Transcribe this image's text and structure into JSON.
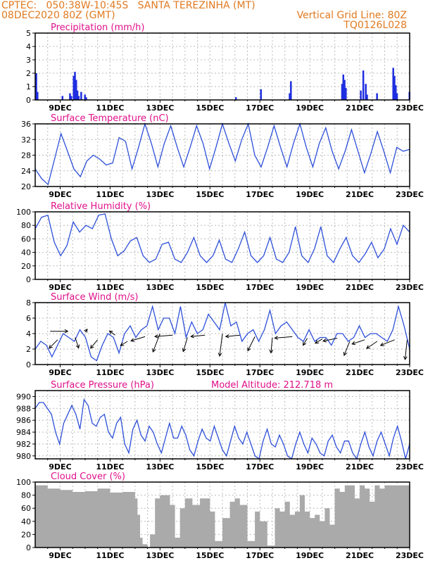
{
  "header": {
    "line1_left": "CPTEC:   050:38W-10:45S   SANTA TEREZINHA (MT)",
    "line2_left": "08DEC2020 80Z (GMT)",
    "line2_right": "Vertical Grid Line: 80Z",
    "line3_right": "TQ0126L028"
  },
  "colors": {
    "line": "#2d4fd9",
    "bar": "#1e2ee0",
    "cloud": "#aaaaaa",
    "title": "#e0108a",
    "header": "#e07a20",
    "grid": "#bbbbbb"
  },
  "x_ticks": [
    "9DEC",
    "11DEC",
    "13DEC",
    "15DEC",
    "17DEC",
    "19DEC",
    "21DEC",
    "23DEC"
  ],
  "chart_data": [
    {
      "type": "bar",
      "title": "Precipitation (mm/h)",
      "ylim": [
        0,
        5
      ],
      "yticks": [
        0,
        1,
        2,
        3,
        4,
        5
      ],
      "x": [
        8.05,
        8.1,
        9.1,
        9.4,
        9.45,
        9.55,
        9.6,
        9.65,
        9.7,
        9.75,
        9.85,
        10.0,
        10.05,
        16.05,
        17.05,
        18.2,
        18.25,
        20.3,
        20.35,
        20.4,
        20.45,
        21.05,
        21.15,
        21.25,
        21.3,
        21.7,
        22.35,
        22.4,
        22.45,
        22.5,
        23.0
      ],
      "values": [
        2.0,
        0.6,
        0.3,
        0.5,
        0.3,
        1.8,
        2.1,
        1.5,
        0.7,
        0.3,
        0.6,
        0.4,
        0.2,
        0.2,
        0.8,
        0.5,
        1.4,
        1.2,
        1.9,
        1.5,
        0.9,
        0.7,
        2.2,
        1.2,
        0.4,
        0.5,
        2.4,
        1.8,
        1.1,
        0.5,
        0.6
      ]
    },
    {
      "type": "line",
      "title": "Surface Temperature (nC)",
      "ylim": [
        20,
        36
      ],
      "yticks": [
        20,
        24,
        28,
        32,
        36
      ],
      "series": [
        {
          "values": [
            24.5,
            22,
            20.5,
            27,
            33.5,
            29,
            24.5,
            22.5,
            26.5,
            28,
            27,
            25.5,
            26,
            32.5,
            31.5,
            24.5,
            30,
            36,
            31,
            25,
            31,
            35.5,
            30,
            25,
            30,
            35.5,
            31,
            24.5,
            30,
            36,
            31,
            26.5,
            32,
            36,
            28,
            25,
            30,
            35.5,
            30,
            25,
            31,
            36,
            30,
            25,
            31,
            35,
            29,
            24.5,
            29,
            34.5,
            29,
            23.5,
            28.5,
            34,
            29,
            23.5,
            30,
            29,
            29.5
          ]
        }
      ]
    },
    {
      "type": "line",
      "title": "Relative Humidity (%)",
      "ylim": [
        0,
        100
      ],
      "yticks": [
        0,
        20,
        40,
        60,
        80,
        100
      ],
      "series": [
        {
          "values": [
            75,
            92,
            95,
            55,
            35,
            50,
            85,
            70,
            80,
            75,
            95,
            97,
            60,
            35,
            42,
            57,
            62,
            35,
            25,
            30,
            52,
            55,
            30,
            25,
            40,
            62,
            35,
            25,
            35,
            58,
            30,
            25,
            45,
            70,
            35,
            25,
            35,
            62,
            30,
            25,
            40,
            78,
            35,
            25,
            45,
            78,
            35,
            25,
            45,
            62,
            35,
            25,
            38,
            55,
            32,
            45,
            75,
            52,
            80,
            70
          ]
        }
      ]
    },
    {
      "type": "line",
      "title": "Surface Wind (m/s)",
      "ylim": [
        0,
        8
      ],
      "yticks": [
        0,
        2,
        4,
        6,
        8
      ],
      "series": [
        {
          "values": [
            2,
            3,
            2.5,
            1,
            2.5,
            4,
            3.5,
            3,
            4.5,
            3.5,
            1,
            0.5,
            2.5,
            4,
            3.5,
            1.5,
            4,
            5,
            3.5,
            4.5,
            5,
            7.5,
            4.5,
            6,
            6,
            4,
            7.5,
            3.5,
            5.5,
            4,
            4.5,
            6.5,
            5.5,
            4.5,
            8,
            5,
            5.5,
            3,
            4,
            4.5,
            3,
            4.5,
            7,
            4,
            5,
            5.5,
            4.5,
            3.5,
            3,
            4.5,
            3,
            3.5,
            3.5,
            2.5,
            4,
            4,
            3,
            3.5,
            5,
            3.5,
            4,
            4,
            3.5,
            3,
            4.5,
            7.5,
            5,
            2
          ]
        }
      ]
    },
    {
      "type": "line",
      "title": "Surface Pressure (hPa)",
      "annotation": "Model Altitude: 212.718 m",
      "ylim": [
        979.5,
        991
      ],
      "yticks": [
        980,
        982,
        984,
        986,
        988,
        990
      ],
      "series": [
        {
          "values": [
            988,
            989,
            989,
            988,
            987,
            984,
            982,
            985.5,
            987,
            988.5,
            987,
            984.5,
            989.5,
            988.5,
            985.5,
            985,
            986.5,
            987,
            984,
            983,
            985.5,
            986.5,
            982,
            980.5,
            984.5,
            986,
            983.5,
            982.5,
            985,
            984,
            982,
            980.5,
            983,
            985.5,
            983,
            983,
            985,
            983.5,
            981,
            980,
            982.5,
            984.5,
            983,
            982.5,
            985,
            983,
            981,
            980,
            982.5,
            985,
            983,
            982,
            984,
            982,
            980,
            979.5,
            982.5,
            984.5,
            982,
            981.5,
            983.5,
            982,
            980,
            979.5,
            982,
            984,
            982,
            980.5,
            983,
            982,
            980.5,
            980,
            982.5,
            983.5,
            981.5,
            980.5,
            982.5,
            982.5,
            980.5,
            979.5,
            982,
            984,
            981.5,
            980,
            982.5,
            984,
            982,
            980,
            983,
            985,
            982.5,
            979.5,
            982
          ]
        }
      ]
    },
    {
      "type": "bar",
      "title": "Cloud Cover (%)",
      "ylim": [
        0,
        100
      ],
      "yticks": [
        0,
        20,
        40,
        60,
        80,
        100
      ],
      "x": [
        8.0,
        8.5,
        9.0,
        9.5,
        10.0,
        10.5,
        11.0,
        11.5,
        12.0,
        12.1,
        12.2,
        12.3,
        12.5,
        12.6,
        12.8,
        13.0,
        13.2,
        13.4,
        13.6,
        13.8,
        14.0,
        14.3,
        14.6,
        15.0,
        15.2,
        15.5,
        15.8,
        16.0,
        16.2,
        16.5,
        16.8,
        17.0,
        17.3,
        17.6,
        17.8,
        18.0,
        18.2,
        18.4,
        18.6,
        18.8,
        19.0,
        19.2,
        19.4,
        19.6,
        19.8,
        20.0,
        20.2,
        20.4,
        20.6,
        20.8,
        21.0,
        21.2,
        21.4,
        21.6,
        21.8,
        22.0,
        22.2,
        22.4,
        22.6,
        22.8,
        23.0
      ],
      "values": [
        95,
        90,
        88,
        85,
        86,
        90,
        84,
        85,
        75,
        50,
        15,
        5,
        0,
        20,
        75,
        80,
        80,
        65,
        15,
        60,
        75,
        65,
        75,
        55,
        10,
        45,
        70,
        75,
        65,
        10,
        55,
        40,
        3,
        60,
        55,
        70,
        50,
        55,
        80,
        55,
        45,
        50,
        40,
        60,
        35,
        90,
        85,
        95,
        95,
        75,
        95,
        90,
        70,
        95,
        90,
        95,
        95,
        95,
        95,
        95,
        95
      ]
    }
  ]
}
